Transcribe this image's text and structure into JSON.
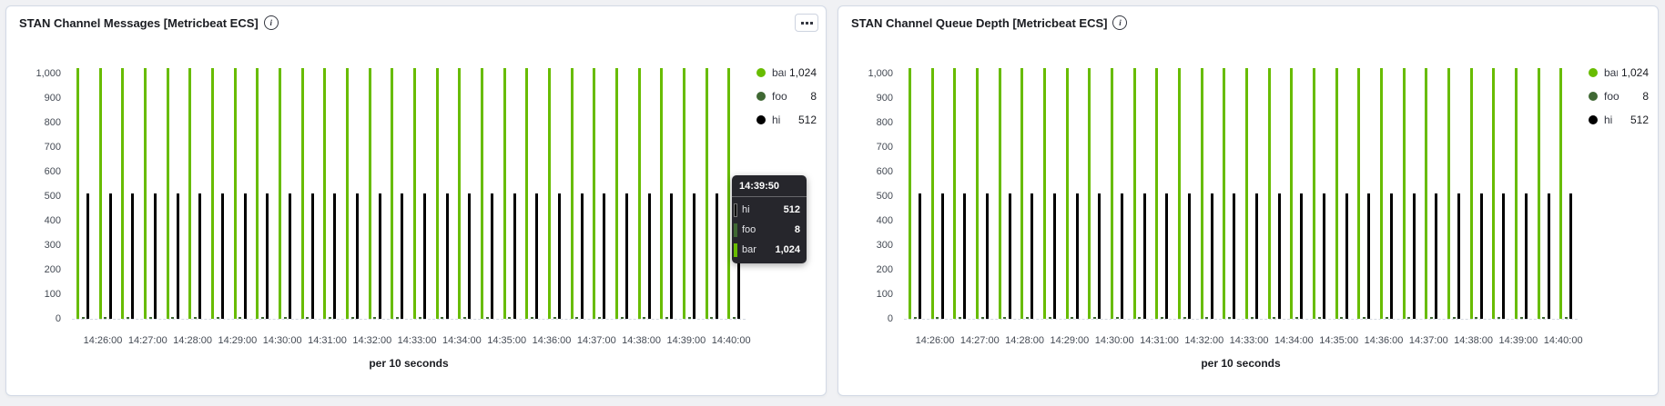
{
  "page": {
    "background": "#f0f1f4"
  },
  "panels": [
    {
      "title": "STAN Channel Messages [Metricbeat ECS]",
      "info_icon": "i",
      "options_button": true,
      "chart_data": {
        "type": "bar",
        "xlabel": "per 10 seconds",
        "x_tick_labels": [
          "14:26:00",
          "14:27:00",
          "14:28:00",
          "14:29:00",
          "14:30:00",
          "14:31:00",
          "14:32:00",
          "14:33:00",
          "14:34:00",
          "14:35:00",
          "14:36:00",
          "14:37:00",
          "14:38:00",
          "14:39:00",
          "14:40:00"
        ],
        "y_tick_labels": [
          "0",
          "100",
          "200",
          "300",
          "400",
          "500",
          "600",
          "700",
          "800",
          "900",
          "1,000"
        ],
        "ylim": [
          0,
          1075
        ],
        "grid": "dashed baseline at 0 only",
        "n_buckets": 30,
        "series": [
          {
            "name": "bar",
            "color": "#68BC00",
            "value_per_bucket": 1024
          },
          {
            "name": "foo",
            "color": "#3F6833",
            "value_per_bucket": 8
          },
          {
            "name": "hi",
            "color": "#000000",
            "value_per_bucket": 512
          }
        ],
        "legend": [
          {
            "label": "bar",
            "value": "1,024",
            "color": "#68BC00"
          },
          {
            "label": "foo",
            "value": "8",
            "color": "#3F6833"
          },
          {
            "label": "hi",
            "value": "512",
            "color": "#000000"
          }
        ],
        "legend_position": "right"
      },
      "tooltip": {
        "time": "14:39:50",
        "rows": [
          {
            "label": "hi",
            "value": "512",
            "color": "#000000"
          },
          {
            "label": "foo",
            "value": "8",
            "color": "#3F6833"
          },
          {
            "label": "bar",
            "value": "1,024",
            "color": "#68BC00"
          }
        ]
      }
    },
    {
      "title": "STAN Channel Queue Depth [Metricbeat ECS]",
      "info_icon": "i",
      "options_button": false,
      "chart_data": {
        "type": "bar",
        "xlabel": "per 10 seconds",
        "x_tick_labels": [
          "14:26:00",
          "14:27:00",
          "14:28:00",
          "14:29:00",
          "14:30:00",
          "14:31:00",
          "14:32:00",
          "14:33:00",
          "14:34:00",
          "14:35:00",
          "14:36:00",
          "14:37:00",
          "14:38:00",
          "14:39:00",
          "14:40:00"
        ],
        "y_tick_labels": [
          "0",
          "100",
          "200",
          "300",
          "400",
          "500",
          "600",
          "700",
          "800",
          "900",
          "1,000"
        ],
        "ylim": [
          0,
          1075
        ],
        "grid": "dashed baseline at 0 only",
        "n_buckets": 30,
        "series": [
          {
            "name": "bar",
            "color": "#68BC00",
            "value_per_bucket": 1024
          },
          {
            "name": "foo",
            "color": "#3F6833",
            "value_per_bucket": 8
          },
          {
            "name": "hi",
            "color": "#000000",
            "value_per_bucket": 512
          }
        ],
        "legend": [
          {
            "label": "bar",
            "value": "1,024",
            "color": "#68BC00"
          },
          {
            "label": "foo",
            "value": "8",
            "color": "#3F6833"
          },
          {
            "label": "hi",
            "value": "512",
            "color": "#000000"
          }
        ],
        "legend_position": "right"
      }
    }
  ]
}
